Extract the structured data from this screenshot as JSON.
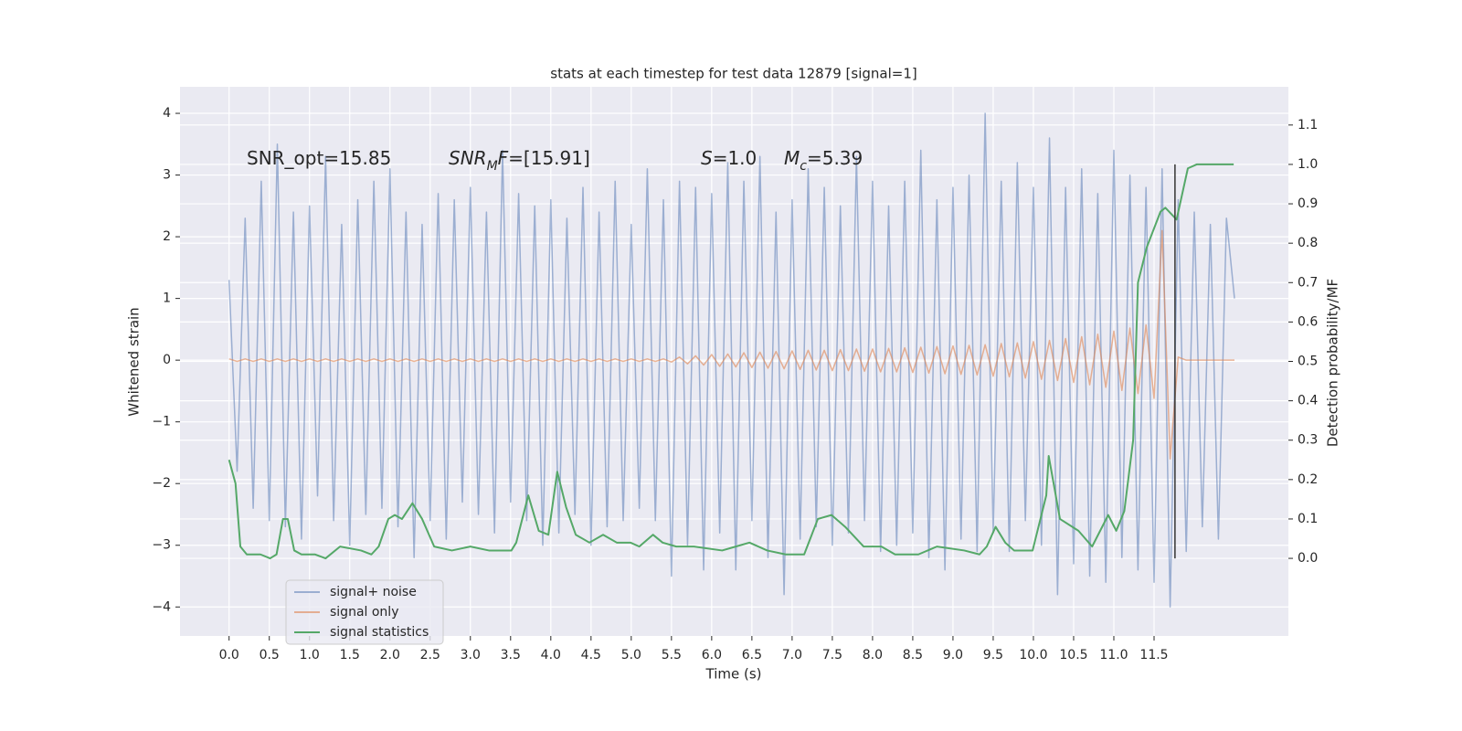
{
  "chart_data": {
    "type": "line",
    "title": "stats at each timestep for test data 12879 [signal=1]",
    "xlabel": "Time (s)",
    "ylabel": "Whitened strain",
    "y2label": "Detection probability/MF",
    "grid": true,
    "legend": "lower left",
    "xlim": [
      -0.61,
      13.17
    ],
    "ylim": [
      -4.47,
      4.43
    ],
    "y2lim": [
      -0.197,
      1.197
    ],
    "xticks": [
      {
        "value": 0,
        "label": "0.0"
      },
      {
        "value": 0.5,
        "label": "0.5"
      },
      {
        "value": 1,
        "label": "1.0"
      },
      {
        "value": 1.5,
        "label": "1.5"
      },
      {
        "value": 2,
        "label": "2.0"
      },
      {
        "value": 2.5,
        "label": "2.5"
      },
      {
        "value": 3,
        "label": "3.0"
      },
      {
        "value": 3.5,
        "label": "3.5"
      },
      {
        "value": 4,
        "label": "4.0"
      },
      {
        "value": 4.5,
        "label": "4.5"
      },
      {
        "value": 5,
        "label": "5.0"
      },
      {
        "value": 5.5,
        "label": "5.5"
      },
      {
        "value": 6,
        "label": "6.0"
      },
      {
        "value": 6.5,
        "label": "6.5"
      },
      {
        "value": 7,
        "label": "7.0"
      },
      {
        "value": 7.5,
        "label": "7.5"
      },
      {
        "value": 8,
        "label": "8.0"
      },
      {
        "value": 8.5,
        "label": "8.5"
      },
      {
        "value": 9,
        "label": "9.0"
      },
      {
        "value": 9.5,
        "label": "9.5"
      },
      {
        "value": 10,
        "label": "10.0"
      },
      {
        "value": 10.5,
        "label": "10.5"
      },
      {
        "value": 11,
        "label": "11.0"
      },
      {
        "value": 11.5,
        "label": "11.5"
      }
    ],
    "yticks": [
      {
        "value": -4,
        "label": "−4"
      },
      {
        "value": -3,
        "label": "−3"
      },
      {
        "value": -2,
        "label": "−2"
      },
      {
        "value": -1,
        "label": "−1"
      },
      0,
      1,
      2,
      3,
      4
    ],
    "y2ticks": [
      {
        "value": 0,
        "label": "0.0"
      },
      {
        "value": 0.1,
        "label": "0.1"
      },
      {
        "value": 0.2,
        "label": "0.2"
      },
      {
        "value": 0.3,
        "label": "0.3"
      },
      {
        "value": 0.4,
        "label": "0.4"
      },
      {
        "value": 0.5,
        "label": "0.5"
      },
      {
        "value": 0.6,
        "label": "0.6"
      },
      {
        "value": 0.7,
        "label": "0.7"
      },
      {
        "value": 0.8,
        "label": "0.8"
      },
      {
        "value": 0.9,
        "label": "0.9"
      },
      {
        "value": 1,
        "label": "1.0"
      },
      {
        "value": 1.1,
        "label": "1.1"
      }
    ],
    "annotations": [
      [
        {
          "text": "SNR_opt=15.85",
          "italic": false,
          "sub": false
        }
      ],
      [
        {
          "text": "SNR",
          "italic": true,
          "sub": false
        },
        {
          "text": "M",
          "italic": true,
          "sub": true
        },
        {
          "text": "F",
          "italic": true,
          "sub": false
        },
        {
          "text": "=[15.91]",
          "italic": false,
          "sub": false
        }
      ],
      [
        {
          "text": "S",
          "italic": true,
          "sub": false
        },
        {
          "text": "=1.0",
          "italic": false,
          "sub": false
        }
      ],
      [
        {
          "text": "M",
          "italic": true,
          "sub": false
        },
        {
          "text": "c",
          "italic": true,
          "sub": true
        },
        {
          "text": "=5.39",
          "italic": false,
          "sub": false
        }
      ]
    ],
    "vline": {
      "x": 11.76,
      "ymin": 0,
      "ymax": 1,
      "axis": "y2",
      "color": "#333333"
    },
    "series": [
      {
        "name": "signal+ noise",
        "color": "#4c72b0",
        "opacity": 0.5,
        "x": [
          0.0,
          0.1,
          0.2,
          0.3,
          0.4,
          0.5,
          0.6,
          0.7,
          0.8,
          0.9,
          1.0,
          1.1,
          1.2,
          1.3,
          1.4,
          1.5,
          1.6,
          1.7,
          1.8,
          1.9,
          2.0,
          2.1,
          2.2,
          2.3,
          2.4,
          2.5,
          2.6,
          2.7,
          2.8,
          2.9,
          3.0,
          3.1,
          3.2,
          3.3,
          3.4,
          3.5,
          3.6,
          3.7,
          3.8,
          3.9,
          4.0,
          4.1,
          4.2,
          4.3,
          4.4,
          4.5,
          4.6,
          4.7,
          4.8,
          4.9,
          5.0,
          5.1,
          5.2,
          5.3,
          5.4,
          5.5,
          5.6,
          5.7,
          5.8,
          5.9,
          6.0,
          6.1,
          6.2,
          6.3,
          6.4,
          6.5,
          6.6,
          6.7,
          6.8,
          6.9,
          7.0,
          7.1,
          7.2,
          7.3,
          7.4,
          7.5,
          7.6,
          7.7,
          7.8,
          7.9,
          8.0,
          8.1,
          8.2,
          8.3,
          8.4,
          8.5,
          8.6,
          8.7,
          8.8,
          8.9,
          9.0,
          9.1,
          9.2,
          9.3,
          9.4,
          9.5,
          9.6,
          9.7,
          9.8,
          9.9,
          10.0,
          10.1,
          10.2,
          10.3,
          10.4,
          10.5,
          10.6,
          10.7,
          10.8,
          10.9,
          11.0,
          11.1,
          11.2,
          11.3,
          11.4,
          11.5,
          11.6,
          11.7,
          11.8,
          11.9,
          12.0,
          12.1,
          12.2,
          12.3,
          12.4,
          12.5
        ],
        "values": [
          1.3,
          -1.8,
          2.3,
          -2.4,
          2.9,
          -2.6,
          3.5,
          -2.7,
          2.4,
          -2.9,
          2.5,
          -2.2,
          3.3,
          -2.6,
          2.2,
          -3.0,
          2.6,
          -2.5,
          2.9,
          -2.4,
          3.1,
          -2.7,
          2.4,
          -3.2,
          2.2,
          -2.6,
          2.7,
          -2.9,
          2.6,
          -2.3,
          2.8,
          -2.5,
          2.4,
          -2.8,
          3.4,
          -2.3,
          2.7,
          -2.6,
          2.5,
          -3.0,
          2.6,
          -2.8,
          2.3,
          -2.5,
          2.8,
          -3.0,
          2.4,
          -2.7,
          2.9,
          -2.6,
          2.2,
          -2.4,
          3.1,
          -2.6,
          2.6,
          -3.5,
          2.9,
          -3.0,
          2.8,
          -3.4,
          2.7,
          -2.8,
          3.2,
          -3.4,
          2.9,
          -2.6,
          3.3,
          -3.2,
          2.4,
          -3.8,
          2.6,
          -2.9,
          3.1,
          -2.7,
          2.8,
          -3.0,
          2.5,
          -2.8,
          3.3,
          -2.6,
          2.9,
          -3.1,
          2.5,
          -3.0,
          2.9,
          -2.8,
          3.4,
          -3.2,
          2.6,
          -3.4,
          2.8,
          -2.9,
          3.0,
          -3.1,
          4.0,
          -2.8,
          2.9,
          -3.1,
          3.2,
          -2.6,
          2.8,
          -3.0,
          3.6,
          -3.8,
          2.8,
          -3.3,
          3.1,
          -3.5,
          2.7,
          -3.6,
          3.4,
          -3.2,
          3.0,
          -3.4,
          2.8,
          -3.6,
          3.1,
          -4.0,
          2.6,
          -3.1,
          2.4,
          -2.7,
          2.2,
          -2.9,
          2.3,
          1.0
        ]
      },
      {
        "name": "signal only",
        "color": "#dd8452",
        "opacity": 0.6,
        "x": [
          0.0,
          0.1,
          0.2,
          0.3,
          0.4,
          0.5,
          0.6,
          0.7,
          0.8,
          0.9,
          1.0,
          1.1,
          1.2,
          1.3,
          1.4,
          1.5,
          1.6,
          1.7,
          1.8,
          1.9,
          2.0,
          2.1,
          2.2,
          2.3,
          2.4,
          2.5,
          2.6,
          2.7,
          2.8,
          2.9,
          3.0,
          3.1,
          3.2,
          3.3,
          3.4,
          3.5,
          3.6,
          3.7,
          3.8,
          3.9,
          4.0,
          4.1,
          4.2,
          4.3,
          4.4,
          4.5,
          4.6,
          4.7,
          4.8,
          4.9,
          5.0,
          5.1,
          5.2,
          5.3,
          5.4,
          5.5,
          5.6,
          5.7,
          5.8,
          5.9,
          6.0,
          6.1,
          6.2,
          6.3,
          6.4,
          6.5,
          6.6,
          6.7,
          6.8,
          6.9,
          7.0,
          7.1,
          7.2,
          7.3,
          7.4,
          7.5,
          7.6,
          7.7,
          7.8,
          7.9,
          8.0,
          8.1,
          8.2,
          8.3,
          8.4,
          8.5,
          8.6,
          8.7,
          8.8,
          8.9,
          9.0,
          9.1,
          9.2,
          9.3,
          9.4,
          9.5,
          9.6,
          9.7,
          9.8,
          9.9,
          10.0,
          10.1,
          10.2,
          10.3,
          10.4,
          10.5,
          10.6,
          10.7,
          10.8,
          10.9,
          11.0,
          11.1,
          11.2,
          11.3,
          11.4,
          11.5,
          11.6,
          11.7,
          11.8,
          11.9,
          12.0,
          12.1,
          12.2,
          12.3,
          12.4,
          12.5
        ],
        "values": [
          0.02,
          -0.02,
          0.02,
          -0.02,
          0.02,
          -0.02,
          0.02,
          -0.02,
          0.02,
          -0.02,
          0.02,
          -0.02,
          0.02,
          -0.02,
          0.02,
          -0.02,
          0.02,
          -0.02,
          0.02,
          -0.02,
          0.02,
          -0.02,
          0.02,
          -0.02,
          0.02,
          -0.02,
          0.02,
          -0.02,
          0.02,
          -0.02,
          0.02,
          -0.02,
          0.02,
          -0.02,
          0.02,
          -0.02,
          0.02,
          -0.02,
          0.02,
          -0.02,
          0.02,
          -0.02,
          0.02,
          -0.02,
          0.02,
          -0.02,
          0.02,
          -0.02,
          0.02,
          -0.02,
          0.02,
          -0.02,
          0.02,
          -0.02,
          0.02,
          -0.03,
          0.05,
          -0.06,
          0.07,
          -0.08,
          0.09,
          -0.1,
          0.1,
          -0.11,
          0.12,
          -0.12,
          0.13,
          -0.13,
          0.14,
          -0.14,
          0.15,
          -0.15,
          0.16,
          -0.16,
          0.16,
          -0.17,
          0.17,
          -0.17,
          0.18,
          -0.18,
          0.18,
          -0.19,
          0.19,
          -0.19,
          0.2,
          -0.2,
          0.21,
          -0.21,
          0.22,
          -0.22,
          0.23,
          -0.23,
          0.24,
          -0.24,
          0.25,
          -0.26,
          0.27,
          -0.27,
          0.28,
          -0.29,
          0.3,
          -0.31,
          0.32,
          -0.33,
          0.35,
          -0.36,
          0.38,
          -0.4,
          0.42,
          -0.44,
          0.47,
          -0.49,
          0.52,
          -0.54,
          0.57,
          -0.62,
          2.1,
          -1.6,
          0.05,
          0.0,
          0.0,
          0.0,
          0.0,
          0.0,
          0.0,
          0.0
        ]
      },
      {
        "name": "signal statistics",
        "color": "#55a868",
        "opacity": 1,
        "axis": "y2",
        "x": [
          0.0,
          0.08,
          0.14,
          0.22,
          0.39,
          0.51,
          0.59,
          0.67,
          0.73,
          0.81,
          0.9,
          1.07,
          1.2,
          1.38,
          1.64,
          1.77,
          1.86,
          1.98,
          2.06,
          2.15,
          2.28,
          2.4,
          2.55,
          2.77,
          3.0,
          3.23,
          3.51,
          3.57,
          3.72,
          3.85,
          3.97,
          4.08,
          4.19,
          4.31,
          4.48,
          4.65,
          4.82,
          4.99,
          5.1,
          5.27,
          5.39,
          5.56,
          5.78,
          6.13,
          6.3,
          6.47,
          6.69,
          6.92,
          7.15,
          7.32,
          7.49,
          7.66,
          7.89,
          8.11,
          8.28,
          8.57,
          8.8,
          9.14,
          9.33,
          9.42,
          9.53,
          9.65,
          9.76,
          9.99,
          10.16,
          10.19,
          10.33,
          10.56,
          10.73,
          10.93,
          11.03,
          11.13,
          11.24,
          11.3,
          11.41,
          11.58,
          11.64,
          11.78,
          11.92,
          12.03,
          12.49
        ],
        "values": [
          0.25,
          0.19,
          0.03,
          0.01,
          0.01,
          0.0,
          0.01,
          0.1,
          0.1,
          0.02,
          0.01,
          0.01,
          0.0,
          0.03,
          0.02,
          0.01,
          0.03,
          0.1,
          0.11,
          0.1,
          0.14,
          0.1,
          0.03,
          0.02,
          0.03,
          0.02,
          0.02,
          0.04,
          0.16,
          0.07,
          0.06,
          0.22,
          0.13,
          0.06,
          0.04,
          0.06,
          0.04,
          0.04,
          0.03,
          0.06,
          0.04,
          0.03,
          0.03,
          0.02,
          0.03,
          0.04,
          0.02,
          0.01,
          0.01,
          0.1,
          0.11,
          0.08,
          0.03,
          0.03,
          0.01,
          0.01,
          0.03,
          0.02,
          0.01,
          0.03,
          0.08,
          0.04,
          0.02,
          0.02,
          0.16,
          0.26,
          0.1,
          0.07,
          0.03,
          0.11,
          0.07,
          0.12,
          0.3,
          0.7,
          0.79,
          0.88,
          0.89,
          0.86,
          0.99,
          1.0,
          1.0
        ]
      }
    ]
  }
}
